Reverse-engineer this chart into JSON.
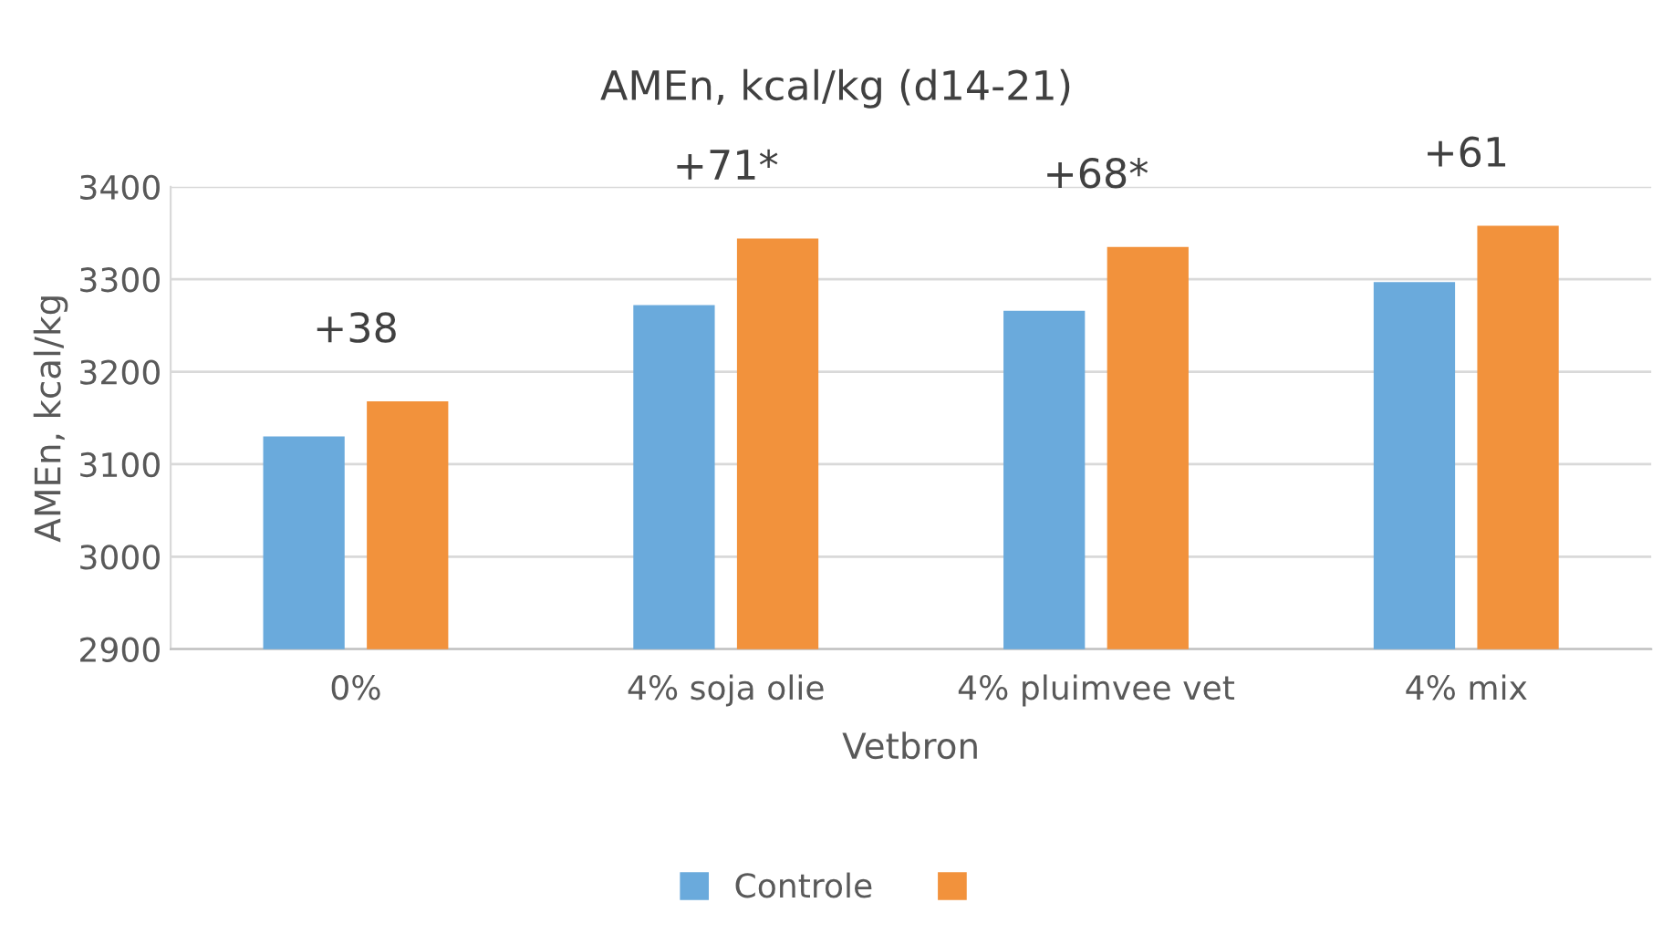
{
  "chart_data": {
    "type": "bar",
    "title": "AMEn, kcal/kg (d14-21)",
    "xlabel": "Vetbron",
    "ylabel": "AMEn, kcal/kg",
    "categories": [
      "0%",
      "4% soja olie",
      "4% pluimvee vet",
      "4% mix"
    ],
    "series": [
      {
        "name": "Controle",
        "color": "#6aaadc",
        "values": [
          3130,
          3272,
          3266,
          3297
        ]
      },
      {
        "color": "#f2923c",
        "values": [
          3168,
          3344,
          3335,
          3358
        ]
      }
    ],
    "ylim": [
      2900,
      3400
    ],
    "yticks": [
      2900,
      3000,
      3100,
      3200,
      3300,
      3400
    ],
    "grid": "y",
    "legend": "bottom",
    "annotations": [
      "+38",
      "+71*",
      "+68*",
      "+61"
    ]
  }
}
